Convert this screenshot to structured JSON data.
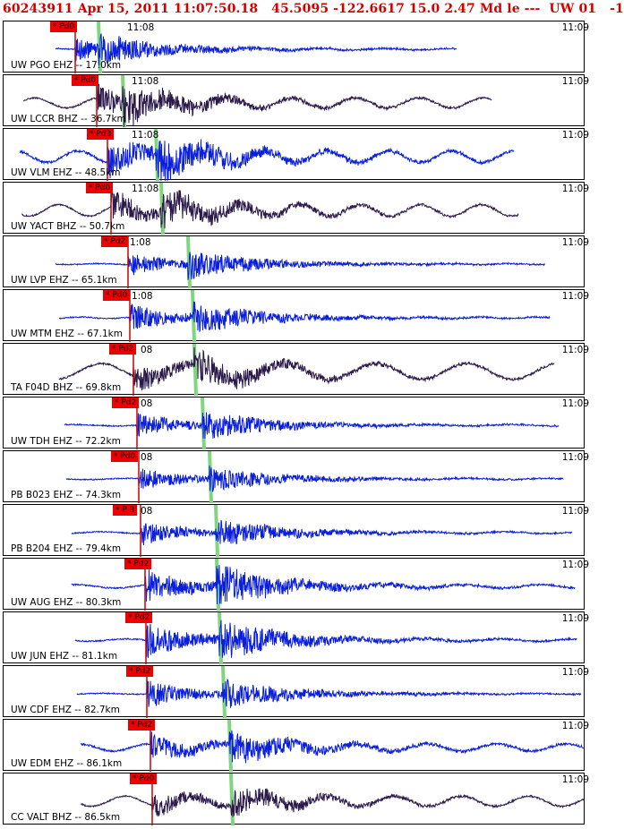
{
  "header": {
    "title": "60243911 Apr 15, 2011 11:07:50.18   45.5095 -122.6617 15.0 2.47 Md le ---  UW 01   -1"
  },
  "colors": {
    "header_text": "#d40000",
    "trace_ehz": "#0a1fdc",
    "trace_bhz": "#2b1a4a",
    "pick_line": "#cc0000",
    "pick_box": "#ee0000",
    "theoretical_line": "#7fd67f"
  },
  "panels": [
    {
      "label": "UW PGO EHZ -- 17.0km",
      "pick": "Pd0",
      "tick": "11:08",
      "tick_right": "11:09",
      "trace_type": "EHZ",
      "amp": 0.55,
      "noise": 0.05
    },
    {
      "label": "UW LCCR BHZ -- 36.7km",
      "pick": "Pd0",
      "tick": "11:08",
      "tick_right": "11:09",
      "trace_type": "BHZ",
      "amp": 0.7,
      "noise": 0.35
    },
    {
      "label": "UW VLM EHZ -- 48.5km",
      "pick": "Pd3",
      "tick": "11:08",
      "tick_right": "11:09",
      "trace_type": "EHZ",
      "amp": 0.9,
      "noise": 0.4
    },
    {
      "label": "UW YACT BHZ -- 50.7km",
      "pick": "Pd0",
      "tick": "11:08",
      "tick_right": "11:09",
      "trace_type": "BHZ",
      "amp": 0.75,
      "noise": 0.4
    },
    {
      "label": "UW LVP EHZ -- 65.1km",
      "pick": "Pd2",
      "tick": "1:08",
      "tick_right": "11:09",
      "trace_type": "EHZ",
      "amp": 0.6,
      "noise": 0.03
    },
    {
      "label": "UW MTM EHZ -- 67.1km",
      "pick": "Pd0",
      "tick": "1:08",
      "tick_right": "11:09",
      "trace_type": "EHZ",
      "amp": 0.65,
      "noise": 0.05
    },
    {
      "label": "TA F04D BHZ -- 69.8km",
      "pick": "Pd2",
      "tick": "08",
      "tick_right": "11:09",
      "trace_type": "BHZ",
      "amp": 0.7,
      "noise": 0.55
    },
    {
      "label": "UW TDH EHZ -- 72.2km",
      "pick": "Pd2",
      "tick": "08",
      "tick_right": "11:09",
      "trace_type": "EHZ",
      "amp": 0.6,
      "noise": 0.05
    },
    {
      "label": "PB B023 EHZ -- 74.3km",
      "pick": "Pd0",
      "tick": "08",
      "tick_right": "11:09",
      "trace_type": "EHZ",
      "amp": 0.55,
      "noise": 0.04
    },
    {
      "label": "PB B204 EHZ -- 79.4km",
      "pick": "P 3",
      "tick": "08",
      "tick_right": "11:09",
      "trace_type": "EHZ",
      "amp": 0.6,
      "noise": 0.06
    },
    {
      "label": "UW AUG EHZ -- 80.3km",
      "pick": "Pd2",
      "tick": "",
      "tick_right": "11:09",
      "trace_type": "EHZ",
      "amp": 0.85,
      "noise": 0.12
    },
    {
      "label": "UW JUN EHZ -- 81.1km",
      "pick": "Pd2",
      "tick": "",
      "tick_right": "11:09",
      "trace_type": "EHZ",
      "amp": 0.85,
      "noise": 0.08
    },
    {
      "label": "UW CDF EHZ -- 82.7km",
      "pick": "Pd2",
      "tick": "",
      "tick_right": "11:09",
      "trace_type": "EHZ",
      "amp": 0.65,
      "noise": 0.03
    },
    {
      "label": "UW EDM EHZ -- 86.1km",
      "pick": "Pd2",
      "tick": "",
      "tick_right": "11:09",
      "trace_type": "EHZ",
      "amp": 0.7,
      "noise": 0.25
    },
    {
      "label": "CC VALT BHZ -- 86.5km",
      "pick": "Pd0",
      "tick": "",
      "tick_right": "11:09",
      "trace_type": "BHZ",
      "amp": 0.6,
      "noise": 0.35
    }
  ]
}
